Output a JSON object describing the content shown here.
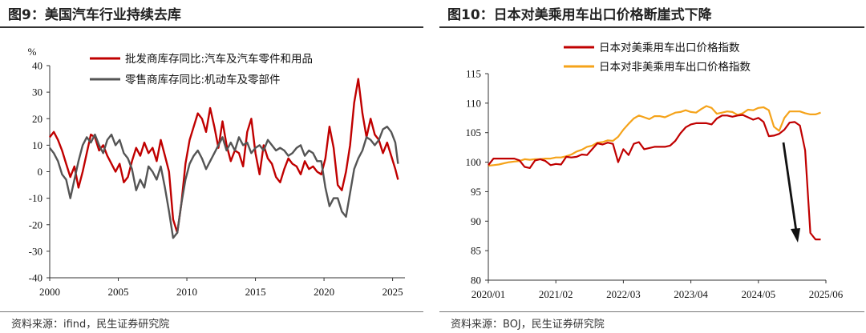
{
  "left": {
    "title": "图9：美国汽车行业持续去库",
    "source": "资料来源：ifind，民生证券研究院",
    "chart_data": {
      "type": "line",
      "ylabel": "%",
      "ylim": [
        -40,
        40
      ],
      "yticks": [
        -40,
        -30,
        -20,
        -10,
        0,
        10,
        20,
        30,
        40
      ],
      "xlim": [
        2000,
        2025.9
      ],
      "xticks": [
        2000,
        2005,
        2010,
        2015,
        2020,
        2025
      ],
      "legend_position": "top-center",
      "series": [
        {
          "name": "批发商库存同比:汽车及汽车零件和用品",
          "color": "#c00000",
          "x": [
            2000.0,
            2000.3,
            2000.6,
            2000.9,
            2001.2,
            2001.5,
            2001.8,
            2002.1,
            2002.4,
            2002.7,
            2003.0,
            2003.3,
            2003.6,
            2003.9,
            2004.2,
            2004.5,
            2004.8,
            2005.1,
            2005.4,
            2005.7,
            2006.0,
            2006.3,
            2006.6,
            2006.9,
            2007.2,
            2007.5,
            2007.8,
            2008.1,
            2008.4,
            2008.7,
            2009.0,
            2009.3,
            2009.6,
            2009.9,
            2010.2,
            2010.5,
            2010.8,
            2011.1,
            2011.4,
            2011.7,
            2012.0,
            2012.3,
            2012.6,
            2012.9,
            2013.2,
            2013.5,
            2013.8,
            2014.1,
            2014.4,
            2014.7,
            2015.0,
            2015.3,
            2015.6,
            2015.9,
            2016.2,
            2016.5,
            2016.8,
            2017.1,
            2017.4,
            2017.7,
            2018.0,
            2018.3,
            2018.6,
            2018.9,
            2019.2,
            2019.5,
            2019.8,
            2020.1,
            2020.4,
            2020.7,
            2021.0,
            2021.3,
            2021.6,
            2021.9,
            2022.2,
            2022.5,
            2022.8,
            2023.1,
            2023.4,
            2023.7,
            2024.0,
            2024.3,
            2024.6,
            2024.9,
            2025.2,
            2025.4
          ],
          "values": [
            13,
            15,
            12,
            8,
            3,
            -2,
            2,
            -6,
            0,
            7,
            14,
            13,
            8,
            10,
            6,
            3,
            0,
            3,
            -4,
            -2,
            4,
            9,
            6,
            11,
            7,
            9,
            4,
            12,
            6,
            0,
            -18,
            -23,
            -12,
            3,
            12,
            17,
            22,
            20,
            15,
            24,
            17,
            9,
            19,
            10,
            4,
            8,
            7,
            2,
            15,
            20,
            7,
            -1,
            10,
            5,
            3,
            -2,
            -4,
            1,
            5,
            3,
            2,
            -1,
            4,
            1,
            2,
            0,
            -1,
            5,
            17,
            9,
            -5,
            -7,
            0,
            10,
            26,
            35,
            22,
            13,
            20,
            14,
            12,
            7,
            11,
            6,
            1,
            -3
          ]
        },
        {
          "name": "零售商库存同比:机动车及零部件",
          "color": "#555555",
          "x": [
            2000.0,
            2000.3,
            2000.6,
            2000.9,
            2001.2,
            2001.5,
            2001.8,
            2002.1,
            2002.4,
            2002.7,
            2003.0,
            2003.3,
            2003.6,
            2003.9,
            2004.2,
            2004.5,
            2004.8,
            2005.1,
            2005.4,
            2005.7,
            2006.0,
            2006.3,
            2006.6,
            2006.9,
            2007.2,
            2007.5,
            2007.8,
            2008.1,
            2008.4,
            2008.7,
            2009.0,
            2009.3,
            2009.6,
            2009.9,
            2010.2,
            2010.5,
            2010.8,
            2011.1,
            2011.4,
            2011.7,
            2012.0,
            2012.3,
            2012.6,
            2012.9,
            2013.2,
            2013.5,
            2013.8,
            2014.1,
            2014.4,
            2014.7,
            2015.0,
            2015.3,
            2015.6,
            2015.9,
            2016.2,
            2016.5,
            2016.8,
            2017.1,
            2017.4,
            2017.7,
            2018.0,
            2018.3,
            2018.6,
            2018.9,
            2019.2,
            2019.5,
            2019.8,
            2020.1,
            2020.4,
            2020.7,
            2021.0,
            2021.3,
            2021.6,
            2021.9,
            2022.2,
            2022.5,
            2022.8,
            2023.1,
            2023.4,
            2023.7,
            2024.0,
            2024.3,
            2024.6,
            2024.9,
            2025.2,
            2025.4
          ],
          "values": [
            9,
            7,
            4,
            -1,
            -3,
            -10,
            -3,
            4,
            10,
            13,
            11,
            14,
            10,
            7,
            12,
            14,
            10,
            12,
            7,
            5,
            1,
            -7,
            -3,
            -6,
            2,
            0,
            -3,
            2,
            -6,
            -15,
            -25,
            -23,
            -12,
            -3,
            3,
            6,
            8,
            5,
            1,
            4,
            7,
            10,
            13,
            8,
            11,
            8,
            13,
            10,
            11,
            7,
            9,
            10,
            8,
            12,
            10,
            8,
            9,
            8,
            6,
            7,
            9,
            10,
            6,
            8,
            7,
            4,
            4,
            -6,
            -13,
            -10,
            -10,
            -15,
            -17,
            -8,
            1,
            5,
            8,
            13,
            12,
            10,
            12,
            16,
            17,
            15,
            11,
            3
          ]
        }
      ]
    }
  },
  "right": {
    "title": "图10：日本对美乘用车出口价格断崖式下降",
    "source": "资料来源：BOJ，民生证券研究院",
    "chart_data": {
      "type": "line",
      "ylim": [
        80,
        115
      ],
      "yticks": [
        80,
        85,
        90,
        95,
        100,
        105,
        110,
        115
      ],
      "categories": [
        "2020/01",
        "2021/02",
        "2022/03",
        "2023/04",
        "2024/05",
        "2025/06"
      ],
      "xlim": [
        0,
        65
      ],
      "xtick_positions": [
        0,
        13,
        26,
        39,
        52,
        65
      ],
      "legend_position": "top-left",
      "annotation": "downward arrow pointing to the sharp drop in 2025",
      "series": [
        {
          "name": "日本对美乘用车出口价格指数",
          "color": "#c00000",
          "x": [
            0,
            1,
            2,
            3,
            4,
            5,
            6,
            7,
            8,
            9,
            10,
            11,
            12,
            13,
            14,
            15,
            16,
            17,
            18,
            19,
            20,
            21,
            22,
            23,
            24,
            25,
            26,
            27,
            28,
            29,
            30,
            31,
            32,
            33,
            34,
            35,
            36,
            37,
            38,
            39,
            40,
            41,
            42,
            43,
            44,
            45,
            46,
            47,
            48,
            49,
            50,
            51,
            52,
            53,
            54,
            55,
            56,
            57,
            58,
            59,
            60,
            61,
            62,
            63,
            64
          ],
          "values": [
            99.5,
            100.6,
            100.6,
            100.6,
            100.6,
            100.6,
            100.3,
            99.2,
            99.0,
            100.3,
            100.5,
            100.2,
            99.5,
            99.7,
            99.6,
            100.9,
            100.8,
            100.9,
            101.3,
            101.2,
            102.2,
            103.2,
            103.0,
            103.3,
            103.1,
            100.0,
            102.2,
            101.2,
            103.1,
            103.4,
            102.2,
            102.4,
            102.6,
            102.6,
            102.6,
            102.8,
            103.6,
            104.9,
            105.9,
            106.4,
            106.6,
            106.6,
            106.6,
            106.4,
            107.4,
            107.9,
            107.9,
            107.7,
            107.9,
            108.0,
            107.6,
            107.2,
            107.5,
            106.8,
            104.4,
            104.5,
            104.8,
            105.5,
            106.7,
            106.8,
            106.2,
            102.0,
            88.0,
            86.9,
            86.9
          ]
        },
        {
          "name": "日本对非美乘用车出口价格指数",
          "color": "#f5a31a",
          "x": [
            0,
            1,
            2,
            3,
            4,
            5,
            6,
            7,
            8,
            9,
            10,
            11,
            12,
            13,
            14,
            15,
            16,
            17,
            18,
            19,
            20,
            21,
            22,
            23,
            24,
            25,
            26,
            27,
            28,
            29,
            30,
            31,
            32,
            33,
            34,
            35,
            36,
            37,
            38,
            39,
            40,
            41,
            42,
            43,
            44,
            45,
            46,
            47,
            48,
            49,
            50,
            51,
            52,
            53,
            54,
            55,
            56,
            57,
            58,
            59,
            60,
            61,
            62,
            63,
            64
          ],
          "values": [
            99.4,
            99.5,
            99.6,
            99.8,
            100.0,
            100.1,
            100.2,
            100.5,
            100.4,
            100.5,
            100.5,
            100.6,
            100.6,
            100.8,
            100.8,
            101.0,
            101.3,
            101.8,
            102.1,
            102.6,
            102.8,
            103.3,
            103.4,
            103.7,
            103.6,
            104.3,
            105.5,
            106.5,
            107.4,
            107.9,
            107.6,
            107.3,
            107.8,
            107.8,
            107.6,
            108.0,
            108.4,
            108.5,
            108.8,
            108.5,
            108.4,
            109.0,
            109.5,
            109.2,
            108.2,
            108.4,
            108.6,
            108.5,
            108.0,
            108.3,
            108.9,
            108.8,
            109.2,
            109.3,
            108.8,
            106.0,
            105.3,
            107.5,
            108.6,
            108.6,
            108.6,
            108.3,
            108.1,
            108.1,
            108.4
          ]
        }
      ]
    }
  }
}
